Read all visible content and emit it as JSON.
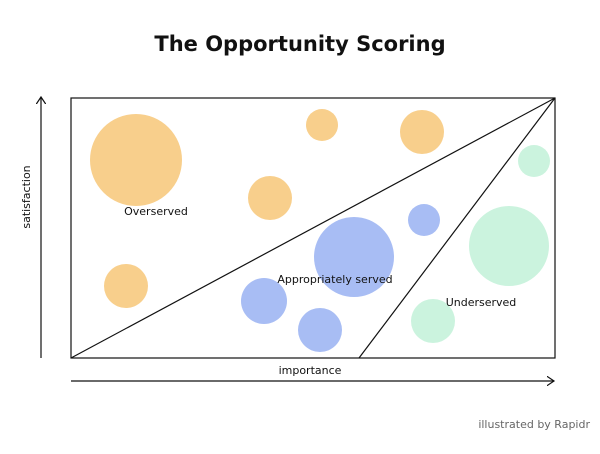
{
  "title": "The Opportunity Scoring",
  "axes": {
    "y_label": "satisfaction",
    "x_label": "importance"
  },
  "regions": [
    "Overserved",
    "Appropriately served",
    "Underserved"
  ],
  "credit": "illustrated by Rapidr"
}
